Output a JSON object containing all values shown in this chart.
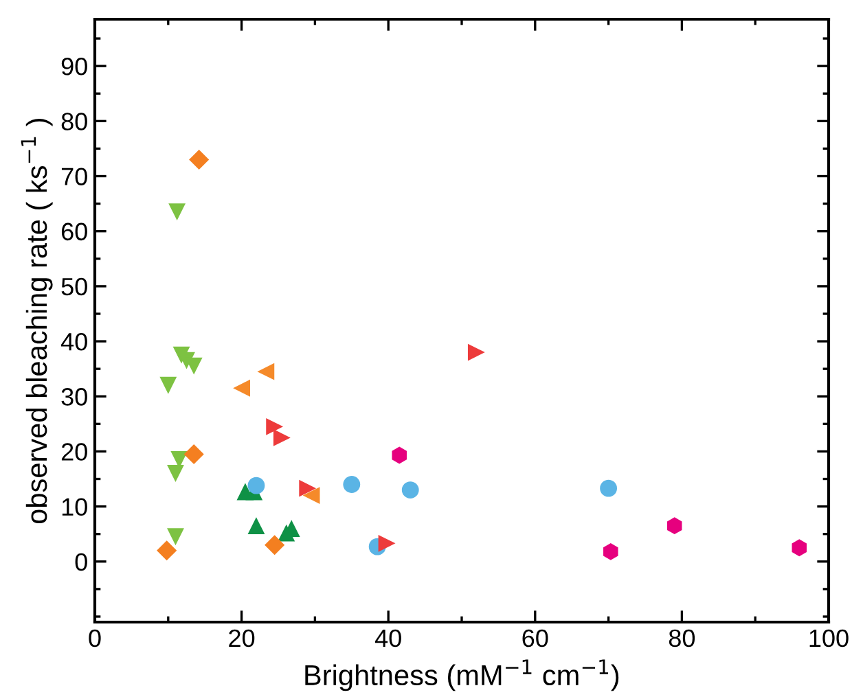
{
  "chart_data": {
    "type": "scatter",
    "xlabel": "Brightness (mM$^{−1}$ cm$^{−1}$)",
    "ylabel": "observed bleaching rate ( ks$^{−1}$ )",
    "xlim": [
      0,
      100
    ],
    "xticks": [
      0,
      20,
      40,
      60,
      80,
      100
    ],
    "ylim": [
      -11,
      98.5
    ],
    "yticks": [
      0,
      10,
      20,
      30,
      40,
      50,
      60,
      70,
      80,
      90
    ],
    "grid": false,
    "legend": false,
    "series": [
      {
        "color": "#f47f20",
        "marker": "diamond",
        "x": [
          14.2,
          13.5,
          9.8,
          24.5
        ],
        "values": [
          73,
          19.5,
          2,
          3
        ]
      },
      {
        "color": "#7dc242",
        "marker": "triangle_down",
        "x": [
          11.2,
          11.8,
          12.5,
          13.5,
          10,
          11.5,
          11,
          11
        ],
        "values": [
          63.5,
          37.5,
          36.5,
          35.5,
          32,
          18.5,
          16,
          4.5
        ]
      },
      {
        "color": "#f58a2a",
        "marker": "triangle_left",
        "x": [
          23.3,
          20,
          29.5
        ],
        "values": [
          34.5,
          31.5,
          12
        ]
      },
      {
        "color": "#ed3b3b",
        "marker": "triangle_right",
        "x": [
          52,
          24.5,
          25.5,
          29,
          39.8
        ],
        "values": [
          38,
          24.5,
          22.5,
          13.3,
          3.3
        ]
      },
      {
        "color": "#5ab4e5",
        "marker": "circle",
        "x": [
          22,
          35,
          43,
          70,
          38.5
        ],
        "values": [
          13.8,
          14,
          13,
          13.3,
          2.7
        ]
      },
      {
        "color": "#0f9146",
        "marker": "triangle",
        "x": [
          20.5,
          21.7,
          22,
          26.1,
          26.8
        ],
        "values": [
          12.7,
          12.7,
          6.5,
          5.2,
          6
        ]
      },
      {
        "color": "#e6007e",
        "x": [
          41.5,
          70.3,
          79,
          96
        ],
        "values": [
          19.3,
          1.8,
          6.5,
          2.5
        ]
      }
    ]
  }
}
